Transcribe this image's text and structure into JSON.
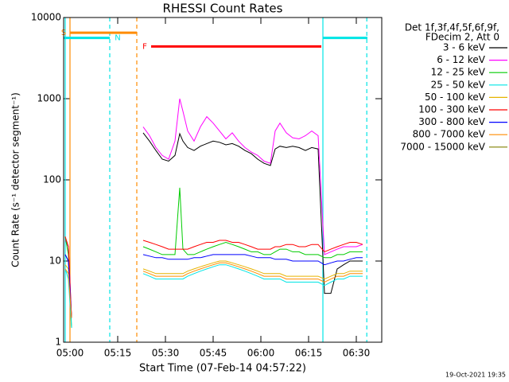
{
  "chart_data": {
    "type": "line",
    "title": "RHESSI Count Rates",
    "x_label": "Start Time (07-Feb-14 04:57:22)",
    "y_label": "Count Rate (s⁻¹ detector segment⁻¹)",
    "legend_title": [
      "Det 1f,3f,4f,5f,6f,9f,",
      "FDecim 2, Att 0"
    ],
    "footer": "19-Oct-2021 19:35",
    "log_y": true,
    "legend": "right",
    "xlim": [
      -2,
      98
    ],
    "xticks": [
      {
        "value": 0,
        "label": "05:00"
      },
      {
        "value": 15,
        "label": "05:15"
      },
      {
        "value": 30,
        "label": "05:30"
      },
      {
        "value": 45,
        "label": "05:45"
      },
      {
        "value": 60,
        "label": "06:00"
      },
      {
        "value": 75,
        "label": "06:15"
      },
      {
        "value": 90,
        "label": "06:30"
      }
    ],
    "ylim": [
      1,
      10000
    ],
    "yticks": [
      1,
      10,
      100,
      1000,
      10000
    ],
    "x": [
      -1.5,
      -0.5,
      0.5,
      10,
      23,
      25,
      27,
      29,
      31,
      33,
      34.5,
      35.5,
      37,
      39,
      41,
      43,
      45,
      47,
      49,
      51,
      53,
      55,
      57,
      59,
      61,
      63,
      64.5,
      66,
      68,
      70,
      72,
      74,
      76,
      78,
      80,
      82,
      84,
      86,
      88,
      90,
      92
    ],
    "series": [
      {
        "name": "3 - 6 keV",
        "color": "#000000",
        "values": [
          12,
          10,
          2,
          null,
          380,
          300,
          230,
          180,
          170,
          200,
          370,
          300,
          250,
          230,
          260,
          280,
          300,
          290,
          270,
          280,
          260,
          230,
          210,
          180,
          160,
          150,
          240,
          260,
          250,
          260,
          250,
          230,
          250,
          240,
          4,
          4,
          8,
          9,
          10,
          10,
          10
        ]
      },
      {
        "name": "6 - 12 keV",
        "color": "#ff00ff",
        "values": [
          18,
          15,
          2,
          null,
          450,
          350,
          250,
          200,
          180,
          300,
          1000,
          700,
          400,
          300,
          450,
          600,
          500,
          400,
          320,
          380,
          300,
          250,
          220,
          200,
          170,
          160,
          400,
          500,
          380,
          330,
          320,
          350,
          400,
          350,
          12,
          13,
          14,
          15,
          15,
          15,
          16
        ]
      },
      {
        "name": "12 - 25 keV",
        "color": "#00cc00",
        "values": [
          20,
          12,
          1.5,
          null,
          15,
          14,
          13,
          12,
          12,
          12,
          80,
          14,
          12,
          12,
          13,
          14,
          15,
          16,
          17,
          16,
          15,
          14,
          13,
          13,
          12,
          12,
          13,
          14,
          14,
          13,
          13,
          12,
          12,
          12,
          11,
          11,
          12,
          12,
          13,
          13,
          13
        ]
      },
      {
        "name": "25 - 50 keV",
        "color": "#00e5e5",
        "values": [
          8,
          6,
          1.5,
          null,
          7,
          6.5,
          6,
          6,
          6,
          6,
          6,
          6,
          6.5,
          7,
          7.5,
          8,
          8.5,
          9,
          9,
          8.5,
          8,
          7.5,
          7,
          6.5,
          6,
          6,
          6,
          6,
          5.5,
          5.5,
          5.5,
          5.5,
          5.5,
          5.5,
          5,
          5.5,
          6,
          6,
          6.5,
          6.5,
          6.5
        ]
      },
      {
        "name": "50 - 100 keV",
        "color": "#e6b400",
        "values": [
          9,
          8,
          2,
          null,
          8,
          7.5,
          7,
          7,
          7,
          7,
          7,
          7,
          7.5,
          8,
          8.5,
          9,
          9.5,
          10,
          10,
          9.5,
          9,
          8.5,
          8,
          7.5,
          7,
          7,
          7,
          7,
          6.5,
          6.5,
          6.5,
          6.5,
          6.5,
          6.5,
          6,
          6.5,
          7,
          7,
          7.5,
          7.5,
          7.5
        ]
      },
      {
        "name": "100 - 300 keV",
        "color": "#ff0000",
        "values": [
          20,
          15,
          2,
          null,
          18,
          17,
          16,
          15,
          14,
          14,
          14,
          14,
          14,
          15,
          16,
          17,
          17,
          18,
          18,
          17,
          17,
          16,
          15,
          14,
          14,
          14,
          15,
          15,
          16,
          16,
          15,
          15,
          16,
          16,
          13,
          14,
          15,
          16,
          17,
          17,
          16
        ]
      },
      {
        "name": "300 - 800 keV",
        "color": "#0000ff",
        "values": [
          12,
          10,
          2,
          null,
          12,
          11.5,
          11,
          11,
          10.5,
          10.5,
          10.5,
          10.5,
          10.5,
          11,
          11,
          11.5,
          12,
          12,
          12,
          12,
          12,
          12,
          11.5,
          11,
          11,
          11,
          10.5,
          10.5,
          10.5,
          10,
          10,
          10,
          10,
          10,
          9,
          9.5,
          10,
          10,
          10.5,
          11,
          11
        ]
      },
      {
        "name": "800 - 7000 keV",
        "color": "#ff8c00",
        "values": [
          8,
          7,
          2,
          null,
          7.5,
          7,
          6.5,
          6.5,
          6.5,
          6.5,
          6.5,
          6.5,
          7,
          7.5,
          8,
          8.5,
          9,
          9.5,
          9.5,
          9,
          8.5,
          8,
          7.5,
          7,
          6.5,
          6.5,
          6.5,
          6.5,
          6,
          6,
          6,
          6,
          6,
          6,
          5.5,
          6,
          6.5,
          6.5,
          7,
          7,
          7
        ]
      },
      {
        "name": "7000 - 15000 keV",
        "color": "#808000",
        "values": [
          null,
          null,
          null,
          null,
          null,
          null,
          null,
          null,
          null,
          null,
          null,
          null,
          null,
          null,
          null,
          null,
          null,
          null,
          null,
          null,
          null,
          null,
          null,
          null,
          null,
          null,
          null,
          null,
          null,
          null,
          null,
          null,
          null,
          null,
          null,
          null,
          null,
          null,
          null,
          null,
          null
        ]
      }
    ],
    "flags": [
      {
        "label": "S",
        "color": "#ff8c00",
        "start": 0,
        "end": 21,
        "level": 6500
      },
      {
        "label": "N",
        "color": "#00e5e5",
        "start": -2,
        "end": 12.5,
        "level": 5600
      },
      {
        "label": "F",
        "color": "#ff0000",
        "start": 25.5,
        "end": 79,
        "level": 4400
      },
      {
        "color": "#00e5e5",
        "start": 79.5,
        "end": 93.5,
        "level": 5600
      }
    ],
    "markers": [
      {
        "x": -1.5,
        "color": "#00e5e5",
        "dashed": false
      },
      {
        "x": 0,
        "color": "#ff8c00",
        "dashed": false
      },
      {
        "x": 12.5,
        "color": "#00e5e5",
        "dashed": true
      },
      {
        "x": 21,
        "color": "#ff8c00",
        "dashed": true
      },
      {
        "x": 79.5,
        "color": "#00e5e5",
        "dashed": false
      },
      {
        "x": 93.3,
        "color": "#00e5e5",
        "dashed": true
      }
    ]
  }
}
